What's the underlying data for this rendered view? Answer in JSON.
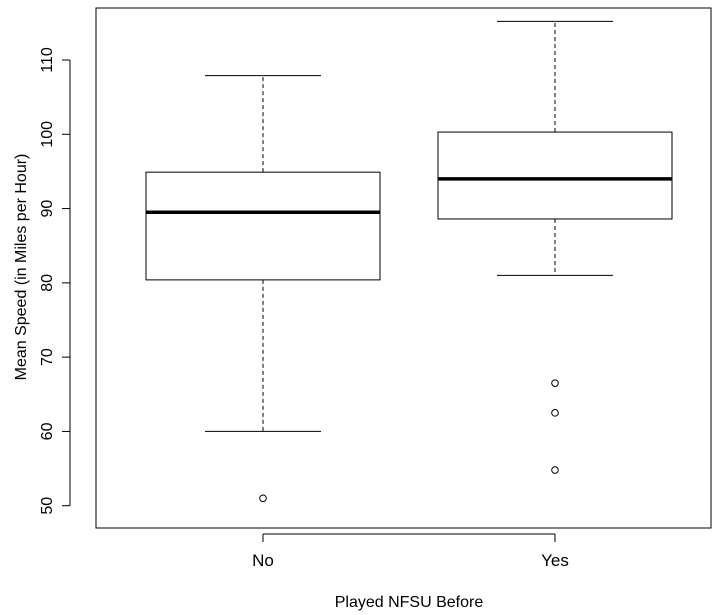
{
  "chart_data": {
    "type": "boxplot",
    "xlabel": "Played NFSU Before",
    "ylabel": "Mean Speed (in Miles per Hour)",
    "ylim": [
      47,
      117
    ],
    "yticks": [
      50,
      60,
      70,
      80,
      90,
      100,
      110
    ],
    "categories": [
      "No",
      "Yes"
    ],
    "boxes": [
      {
        "category": "No",
        "whisker_low": 60,
        "q1": 80.4,
        "median": 89.5,
        "q3": 94.9,
        "whisker_high": 107.9,
        "outliers": [
          51
        ]
      },
      {
        "category": "Yes",
        "whisker_low": 81,
        "q1": 88.6,
        "median": 94,
        "q3": 100.3,
        "whisker_high": 115.2,
        "outliers": [
          66.5,
          62.5,
          54.8
        ]
      }
    ],
    "grid": false,
    "legend": "none",
    "colors": {
      "stroke": "#000000",
      "box_fill": "#ffffff",
      "background": "#ffffff"
    }
  }
}
